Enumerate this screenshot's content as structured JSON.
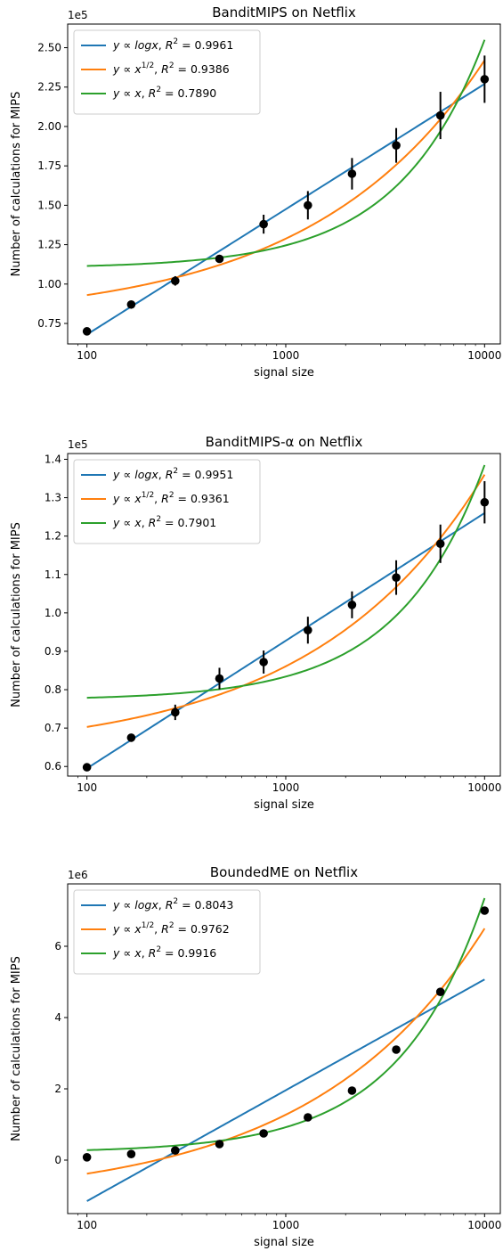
{
  "chart_data": [
    {
      "type": "scatter",
      "title": "BanditMIPS on Netflix",
      "xlabel": "signal size",
      "ylabel": "Number of calculations for MIPS",
      "yscale_label": "1e5",
      "xscale": "log",
      "xlim": [
        80,
        12000
      ],
      "ylim": [
        0.62,
        2.65
      ],
      "xticks": [
        100,
        1000,
        10000
      ],
      "xtick_labels": [
        "100",
        "1000",
        "10000"
      ],
      "yticks": [
        0.75,
        1.0,
        1.25,
        1.5,
        1.75,
        2.0,
        2.25,
        2.5
      ],
      "ytick_labels": [
        "0.75",
        "1.00",
        "1.25",
        "1.50",
        "1.75",
        "2.00",
        "2.25",
        "2.50"
      ],
      "legend_position": "upper left",
      "points": {
        "x": [
          100,
          167,
          278,
          464,
          774,
          1292,
          2154,
          3594,
          5995,
          10000
        ],
        "y": [
          0.7,
          0.87,
          1.02,
          1.16,
          1.38,
          1.5,
          1.7,
          1.88,
          2.07,
          2.3
        ],
        "err": [
          0.01,
          0.01,
          0.03,
          0.02,
          0.06,
          0.09,
          0.1,
          0.11,
          0.15,
          0.15
        ]
      },
      "series": [
        {
          "name": "y ∝ logx,  R² = 0.9961",
          "model": "log",
          "color": "#1f77b4",
          "y_at_min": 0.68,
          "y_at_max": 2.27
        },
        {
          "name": "y ∝ x^1/2,  R² = 0.9386",
          "model": "sqrt",
          "color": "#ff7f0e",
          "y_at_min": 0.93,
          "y_at_max": 2.42
        },
        {
          "name": "y ∝ x,  R² = 0.7890",
          "model": "linear",
          "color": "#2ca02c",
          "y_at_min": 1.115,
          "y_at_max": 2.55
        }
      ],
      "legend": [
        {
          "pre": "y ∝ ",
          "base": "logx",
          "sup": "",
          "r2": "0.9961"
        },
        {
          "pre": "y ∝ ",
          "base": "x",
          "sup": "1/2",
          "r2": "0.9386"
        },
        {
          "pre": "y ∝ ",
          "base": "x",
          "sup": "",
          "r2": "0.7890"
        }
      ]
    },
    {
      "type": "scatter",
      "title": "BanditMIPS-α on Netflix",
      "xlabel": "signal size",
      "ylabel": "Number of calculations for MIPS",
      "yscale_label": "1e5",
      "xscale": "log",
      "xlim": [
        80,
        12000
      ],
      "ylim": [
        0.575,
        1.415
      ],
      "xticks": [
        100,
        1000,
        10000
      ],
      "xtick_labels": [
        "100",
        "1000",
        "10000"
      ],
      "yticks": [
        0.6,
        0.7,
        0.8,
        0.9,
        1.0,
        1.1,
        1.2,
        1.3,
        1.4
      ],
      "ytick_labels": [
        "0.6",
        "0.7",
        "0.8",
        "0.9",
        "1.0",
        "1.1",
        "1.2",
        "1.3",
        "1.4"
      ],
      "legend_position": "upper left",
      "points": {
        "x": [
          100,
          167,
          278,
          464,
          774,
          1292,
          2154,
          3594,
          5995,
          10000
        ],
        "y": [
          0.598,
          0.675,
          0.741,
          0.829,
          0.872,
          0.955,
          1.021,
          1.092,
          1.18,
          1.288
        ],
        "err": [
          0.005,
          0.008,
          0.02,
          0.028,
          0.03,
          0.035,
          0.035,
          0.045,
          0.05,
          0.055
        ]
      },
      "series": [
        {
          "name": "y ∝ logx,  R² = 0.9951",
          "model": "log",
          "color": "#1f77b4",
          "y_at_min": 0.595,
          "y_at_max": 1.26
        },
        {
          "name": "y ∝ x^1/2,  R² = 0.9361",
          "model": "sqrt",
          "color": "#ff7f0e",
          "y_at_min": 0.703,
          "y_at_max": 1.36
        },
        {
          "name": "y ∝ x,  R² = 0.7901",
          "model": "linear",
          "color": "#2ca02c",
          "y_at_min": 0.779,
          "y_at_max": 1.385
        }
      ],
      "legend": [
        {
          "pre": "y ∝ ",
          "base": "logx",
          "sup": "",
          "r2": "0.9951"
        },
        {
          "pre": "y ∝ ",
          "base": "x",
          "sup": "1/2",
          "r2": "0.9361"
        },
        {
          "pre": "y ∝ ",
          "base": "x",
          "sup": "",
          "r2": "0.7901"
        }
      ]
    },
    {
      "type": "scatter",
      "title": "BoundedME on Netflix",
      "xlabel": "signal size",
      "ylabel": "Number of calculations for MIPS",
      "yscale_label": "1e6",
      "xscale": "log",
      "xlim": [
        80,
        12000
      ],
      "ylim": [
        -1.5,
        7.75
      ],
      "xticks": [
        100,
        1000,
        10000
      ],
      "xtick_labels": [
        "100",
        "1000",
        "10000"
      ],
      "yticks": [
        0,
        2,
        4,
        6
      ],
      "ytick_labels": [
        "0",
        "2",
        "4",
        "6"
      ],
      "legend_position": "upper left",
      "points": {
        "x": [
          100,
          167,
          278,
          464,
          774,
          1292,
          2154,
          3594,
          5995,
          10000
        ],
        "y": [
          0.08,
          0.17,
          0.27,
          0.45,
          0.75,
          1.2,
          1.95,
          3.1,
          4.72,
          7.0
        ],
        "err": [
          0,
          0,
          0,
          0,
          0,
          0,
          0,
          0,
          0,
          0
        ]
      },
      "series": [
        {
          "name": "y ∝ logx,  R² = 0.8043",
          "model": "log",
          "color": "#1f77b4",
          "y_at_min": -1.15,
          "y_at_max": 5.07
        },
        {
          "name": "y ∝ x^1/2,  R² = 0.9762",
          "model": "sqrt",
          "color": "#ff7f0e",
          "y_at_min": -0.38,
          "y_at_max": 6.5
        },
        {
          "name": "y ∝ x,  R² = 0.9916",
          "model": "linear",
          "color": "#2ca02c",
          "y_at_min": 0.28,
          "y_at_max": 7.35
        }
      ],
      "legend": [
        {
          "pre": "y ∝ ",
          "base": "logx",
          "sup": "",
          "r2": "0.8043"
        },
        {
          "pre": "y ∝ ",
          "base": "x",
          "sup": "1/2",
          "r2": "0.9762"
        },
        {
          "pre": "y ∝ ",
          "base": "x",
          "sup": "",
          "r2": "0.9916"
        }
      ]
    }
  ]
}
